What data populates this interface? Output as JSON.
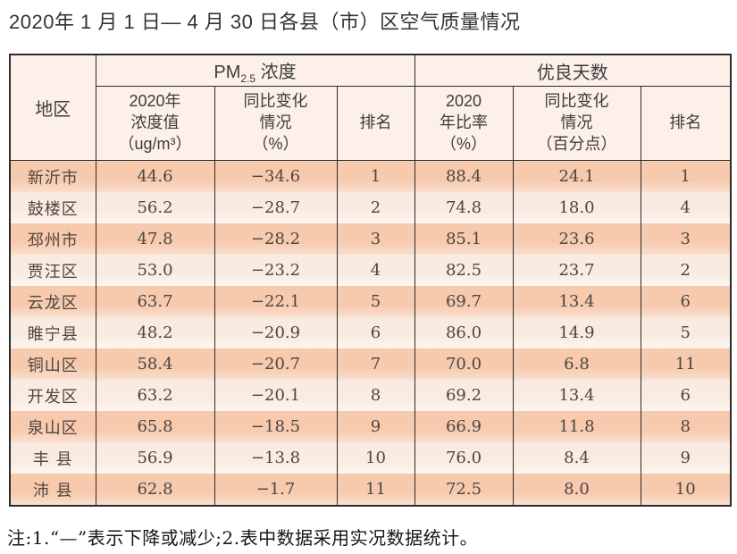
{
  "page": {
    "title": "2020年 1 月 1 日— 4 月 30 日各县（市）区空气质量情况",
    "footnote": "注:1.“—”表示下降或减少;2.表中数据采用实况数据统计。"
  },
  "table": {
    "header": {
      "region": "地区",
      "pm25_group": {
        "prefix": "PM",
        "sub": "2.5",
        "suffix": " 浓度"
      },
      "days_group": "优良天数",
      "sub_headers": [
        "2020年\n浓度值\n（ug/m³）",
        "同比变化\n情况\n（%）",
        "排名",
        "2020\n年比率\n（%）",
        "同比变化\n情况\n（百分点）",
        "排名"
      ]
    },
    "rows": [
      {
        "region": "新沂市",
        "cells": [
          "44.6",
          "−34.6",
          "1",
          "88.4",
          "24.1",
          "1"
        ]
      },
      {
        "region": "鼓楼区",
        "cells": [
          "56.2",
          "−28.7",
          "2",
          "74.8",
          "18.0",
          "4"
        ]
      },
      {
        "region": "邳州市",
        "cells": [
          "47.8",
          "−28.2",
          "3",
          "85.1",
          "23.6",
          "3"
        ]
      },
      {
        "region": "贾汪区",
        "cells": [
          "53.0",
          "−23.2",
          "4",
          "82.5",
          "23.7",
          "2"
        ]
      },
      {
        "region": "云龙区",
        "cells": [
          "63.7",
          "−22.1",
          "5",
          "69.7",
          "13.4",
          "6"
        ]
      },
      {
        "region": "睢宁县",
        "cells": [
          "48.2",
          "−20.9",
          "6",
          "86.0",
          "14.9",
          "5"
        ]
      },
      {
        "region": "铜山区",
        "cells": [
          "58.4",
          "−20.7",
          "7",
          "70.0",
          "6.8",
          "11"
        ]
      },
      {
        "region": "开发区",
        "cells": [
          "63.2",
          "−20.1",
          "8",
          "69.2",
          "13.4",
          "6"
        ]
      },
      {
        "region": "泉山区",
        "cells": [
          "65.8",
          "−18.5",
          "9",
          "66.9",
          "11.8",
          "8"
        ]
      },
      {
        "region": "丰 县",
        "cells": [
          "56.9",
          "−13.8",
          "10",
          "76.0",
          "8.4",
          "9"
        ]
      },
      {
        "region": "沛 县",
        "cells": [
          "62.8",
          "−1.7",
          "11",
          "72.5",
          "8.0",
          "10"
        ]
      }
    ]
  },
  "colors": {
    "title_text": "#333333",
    "header_text": "#3c3c3c",
    "header_bg": "#fcf0e8",
    "data_text": "#4c4640",
    "footnote_text": "#171717",
    "border": "#2b2b2b",
    "row_dark_top": "#f7c9ad",
    "row_dark_bottom": "#fadfce",
    "row_light_top": "#f9ebe1",
    "row_light_bottom": "#fdf6f0"
  }
}
